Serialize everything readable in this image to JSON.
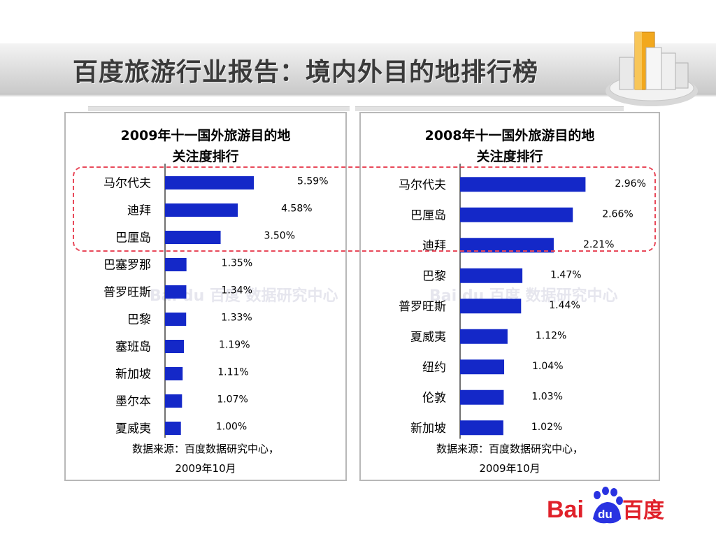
{
  "slide": {
    "title": "百度旅游行业报告：境内外目的地排行榜"
  },
  "chart_data": [
    {
      "type": "bar",
      "orientation": "horizontal",
      "title_line1": "2009年十一国外旅游目的地",
      "title_line2": "关注度排行",
      "categories": [
        "马尔代夫",
        "迪拜",
        "巴厘岛",
        "巴塞罗那",
        "普罗旺斯",
        "巴黎",
        "塞班岛",
        "新加坡",
        "墨尔本",
        "夏威夷"
      ],
      "values": [
        5.59,
        4.58,
        3.5,
        1.35,
        1.34,
        1.33,
        1.19,
        1.11,
        1.07,
        1.0
      ],
      "labels": [
        "5.59%",
        "4.58%",
        "3.50%",
        "1.35%",
        "1.34%",
        "1.33%",
        "1.19%",
        "1.11%",
        "1.07%",
        "1.00%"
      ],
      "xlim": [
        0,
        11
      ],
      "color": "#1428c8",
      "watermark": "Bai du 百度 数据研究中心",
      "source_line1": "数据来源：百度数据研究中心，",
      "source_line2": "2009年10月"
    },
    {
      "type": "bar",
      "orientation": "horizontal",
      "title_line1": "2008年十一国外旅游目的地",
      "title_line2": "关注度排行",
      "categories": [
        "马尔代夫",
        "巴厘岛",
        "迪拜",
        "巴黎",
        "普罗旺斯",
        "夏威夷",
        "纽约",
        "伦敦",
        "新加坡"
      ],
      "values": [
        2.96,
        2.66,
        2.21,
        1.47,
        1.44,
        1.12,
        1.04,
        1.03,
        1.02
      ],
      "labels": [
        "2.96%",
        "2.66%",
        "2.21%",
        "1.47%",
        "1.44%",
        "1.12%",
        "1.04%",
        "1.03%",
        "1.02%"
      ],
      "xlim": [
        0,
        3.3
      ],
      "color": "#1428c8",
      "watermark": "Bai du 百度 数据研究中心",
      "source_line1": "数据来源：百度数据研究中心，",
      "source_line2": "2009年10月"
    }
  ],
  "logo": {
    "text_latin": "Bai",
    "text_paw": "du",
    "text_cn": "百度",
    "color_red": "#e0212a",
    "color_blue": "#2932e1"
  }
}
